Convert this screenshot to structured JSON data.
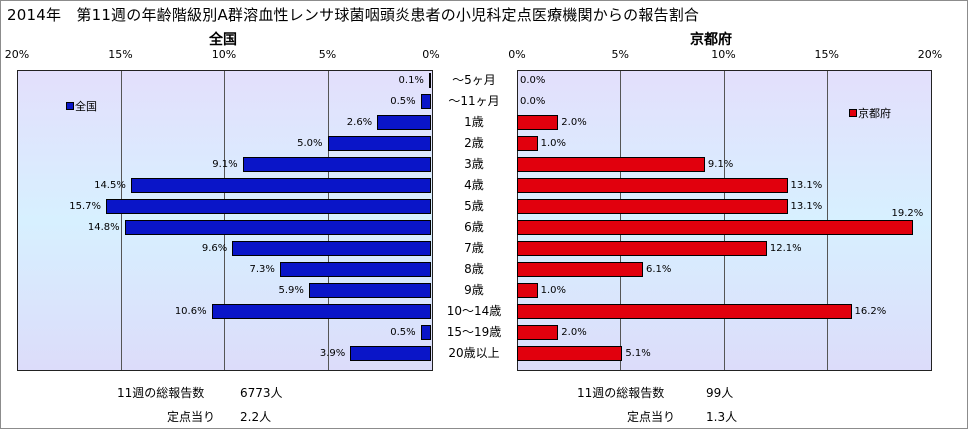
{
  "title": "2014年　第11週の年齢階級別A群溶血性レンサ球菌咽頭炎患者の小児科定点医療機関からの報告割合",
  "chart_data": [
    {
      "type": "bar",
      "title": "全国",
      "orientation": "horizontal",
      "direction": "reversed",
      "xlim": [
        0,
        20
      ],
      "x_ticks": [
        "20%",
        "15%",
        "10%",
        "5%",
        "0%"
      ],
      "categories": [
        "～5ヶ月",
        "～11ヶ月",
        "1歳",
        "2歳",
        "3歳",
        "4歳",
        "5歳",
        "6歳",
        "7歳",
        "8歳",
        "9歳",
        "10～14歳",
        "15～19歳",
        "20歳以上"
      ],
      "series": [
        {
          "name": "全国",
          "color": "#0a15c8",
          "values": [
            0.1,
            0.5,
            2.6,
            5.0,
            9.1,
            14.5,
            15.7,
            14.8,
            9.6,
            7.3,
            5.9,
            10.6,
            0.5,
            3.9
          ],
          "labels": [
            "0.1%",
            "0.5%",
            "2.6%",
            "5.0%",
            "9.1%",
            "14.5%",
            "15.7%",
            "14.8%",
            "9.6%",
            "7.3%",
            "5.9%",
            "10.6%",
            "0.5%",
            "3.9%"
          ]
        }
      ],
      "legend": "top-left",
      "grid": true
    },
    {
      "type": "bar",
      "title": "京都府",
      "orientation": "horizontal",
      "xlim": [
        0,
        20
      ],
      "x_ticks": [
        "0%",
        "5%",
        "10%",
        "15%",
        "20%"
      ],
      "categories": [
        "～5ヶ月",
        "～11ヶ月",
        "1歳",
        "2歳",
        "3歳",
        "4歳",
        "5歳",
        "6歳",
        "7歳",
        "8歳",
        "9歳",
        "10～14歳",
        "15～19歳",
        "20歳以上"
      ],
      "series": [
        {
          "name": "京都府",
          "color": "#e1000d",
          "values": [
            0.0,
            0.0,
            2.0,
            1.0,
            9.1,
            13.1,
            13.1,
            19.2,
            12.1,
            6.1,
            1.0,
            16.2,
            2.0,
            5.1
          ],
          "labels": [
            "0.0%",
            "0.0%",
            "2.0%",
            "1.0%",
            "9.1%",
            "13.1%",
            "13.1%",
            "19.2%",
            "12.1%",
            "6.1%",
            "1.0%",
            "16.2%",
            "2.0%",
            "5.1%"
          ]
        }
      ],
      "legend": "top-right",
      "grid": true
    }
  ],
  "footer": {
    "left": {
      "total_label": "11週の総報告数",
      "total_value": "6773人",
      "per_label": "定点当り",
      "per_value": "2.2人"
    },
    "right": {
      "total_label": "11週の総報告数",
      "total_value": "99人",
      "per_label": "定点当り",
      "per_value": "1.3人"
    }
  }
}
